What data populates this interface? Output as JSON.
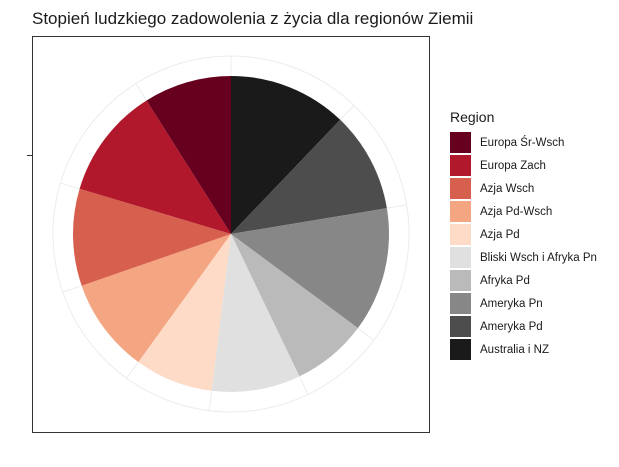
{
  "title": "Stopień ludzkiego zadowolenia z życia dla regionów Ziemii",
  "chart_data": {
    "type": "pie",
    "title": "Stopień ludzkiego zadowolenia z życia dla regionów Ziemii",
    "coord": "polar",
    "legend_title": "Region",
    "legend_position": "right",
    "categories": [
      "Europa Śr-Wsch",
      "Europa Zach",
      "Azja Wsch",
      "Azja Pd-Wsch",
      "Azja Pd",
      "Bliski Wsch i Afryka Pn",
      "Afryka Pd",
      "Ameryka Pn",
      "Ameryka Pd",
      "Australia i NZ"
    ],
    "values": [
      8.5,
      10.8,
      9.4,
      9.2,
      7.6,
      8.6,
      7.3,
      12.1,
      9.7,
      11.5
    ],
    "colors": [
      "#67001f",
      "#b2182b",
      "#d6604d",
      "#f4a582",
      "#fddbc7",
      "#e0e0e0",
      "#bababa",
      "#878787",
      "#4d4d4d",
      "#1a1a1a"
    ]
  }
}
